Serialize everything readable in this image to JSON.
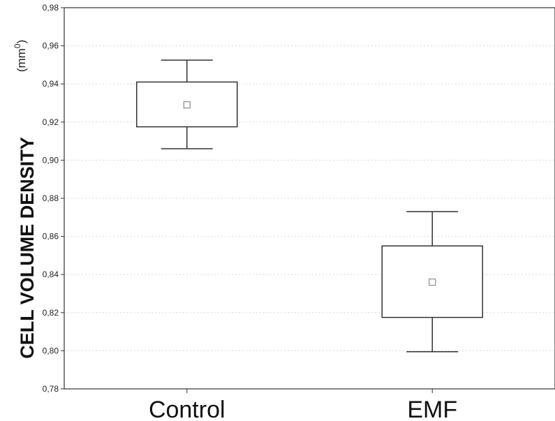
{
  "chart_data": {
    "type": "box",
    "ylabel": "CELL VOLUME DENSITY",
    "yunit": "(mm",
    "yunit_sup": "0",
    "yunit_close": ")",
    "ylim": [
      0.78,
      0.98
    ],
    "yticks": [
      0.78,
      0.8,
      0.82,
      0.84,
      0.86,
      0.88,
      0.9,
      0.92,
      0.94,
      0.96,
      0.98
    ],
    "ytick_labels": [
      "0,78",
      "0,80",
      "0,82",
      "0,84",
      "0,86",
      "0,88",
      "0,90",
      "0,92",
      "0,94",
      "0,96",
      "0,98"
    ],
    "grid": "horizontal dashed",
    "categories": [
      "Control",
      "EMF"
    ],
    "boxes": [
      {
        "category": "Control",
        "center": 0.929,
        "box_low": 0.9175,
        "box_high": 0.941,
        "whisker_low": 0.906,
        "whisker_high": 0.9525
      },
      {
        "category": "EMF",
        "center": 0.836,
        "box_low": 0.8175,
        "box_high": 0.855,
        "whisker_low": 0.7995,
        "whisker_high": 0.873
      }
    ],
    "colors": {
      "line": "#333333",
      "box_fill": "#ffffff",
      "grid": "#d9d9d9",
      "text": "#111111"
    }
  }
}
